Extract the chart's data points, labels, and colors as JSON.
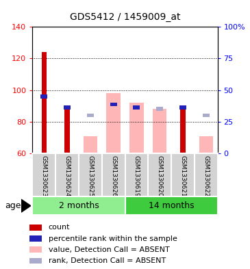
{
  "title": "GDS5412 / 1459009_at",
  "samples": [
    "GSM1330623",
    "GSM1330624",
    "GSM1330625",
    "GSM1330626",
    "GSM1330619",
    "GSM1330620",
    "GSM1330621",
    "GSM1330622"
  ],
  "ylim_left": [
    60,
    140
  ],
  "ylim_right": [
    0,
    100
  ],
  "yticks_left": [
    60,
    80,
    100,
    120,
    140
  ],
  "yticks_right": [
    0,
    25,
    50,
    75,
    100
  ],
  "yticklabels_right": [
    "0",
    "25",
    "50",
    "75",
    "100%"
  ],
  "red_bars": [
    124,
    88,
    null,
    null,
    null,
    null,
    88,
    null
  ],
  "blue_bars": [
    96,
    89,
    null,
    91,
    89,
    null,
    89,
    null
  ],
  "pink_bars": [
    null,
    null,
    71,
    98,
    92,
    88,
    null,
    71
  ],
  "lavender_bars": [
    null,
    null,
    84,
    null,
    null,
    88,
    null,
    84
  ],
  "red_color": "#CC0000",
  "blue_color": "#2222BB",
  "pink_color": "#FFB6B6",
  "lavender_color": "#AAAACC",
  "bg_plot": "#FFFFFF",
  "bg_sample": "#D3D3D3",
  "bg_group_2months": "#90EE90",
  "bg_group_14months": "#3ECC3E",
  "legend_items": [
    {
      "color": "#CC0000",
      "label": "count"
    },
    {
      "color": "#2222BB",
      "label": "percentile rank within the sample"
    },
    {
      "color": "#FFB6B6",
      "label": "value, Detection Call = ABSENT"
    },
    {
      "color": "#AAAACC",
      "label": "rank, Detection Call = ABSENT"
    }
  ],
  "fig_width": 3.65,
  "fig_height": 3.93,
  "dpi": 100
}
